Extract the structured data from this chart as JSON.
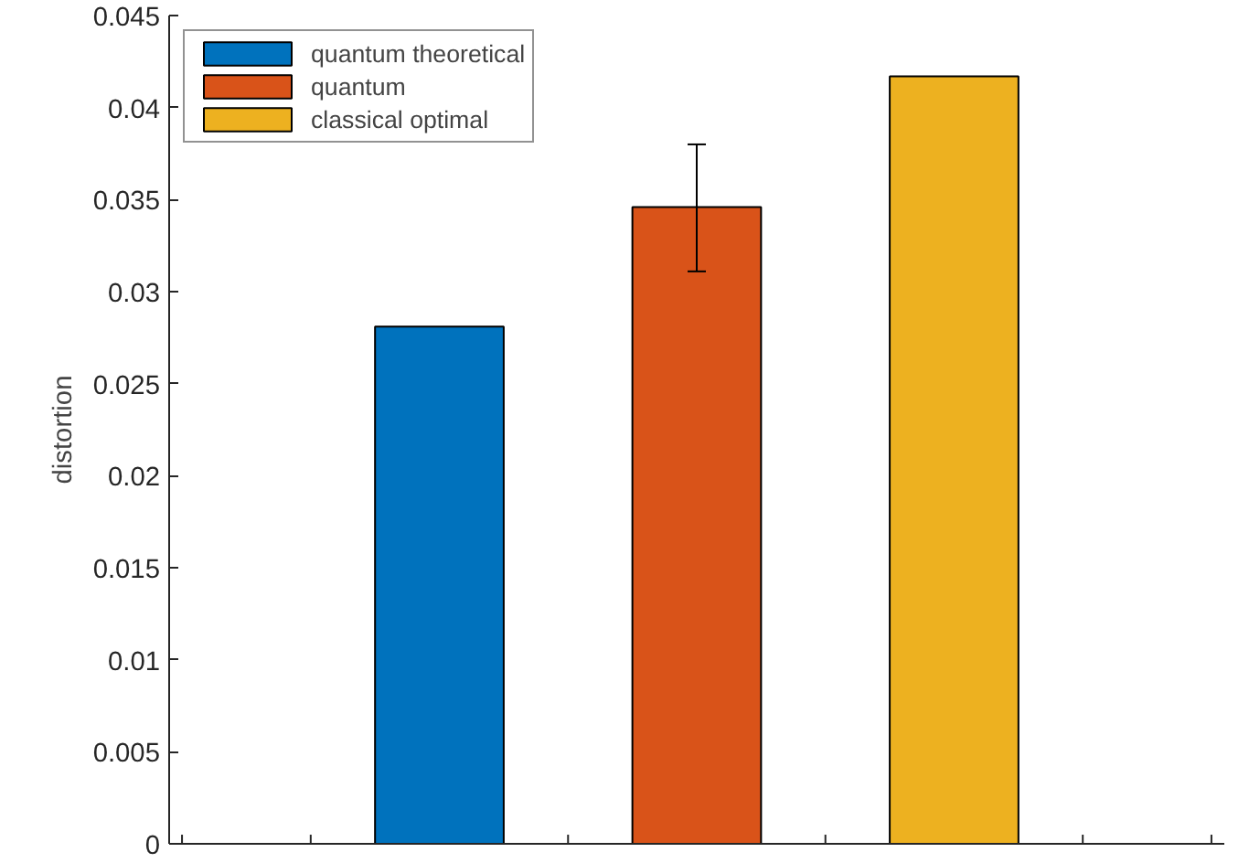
{
  "chart_data": {
    "type": "bar",
    "ylabel": "distortion",
    "categories": [
      null,
      null,
      null
    ],
    "ylim": [
      0,
      0.045
    ],
    "yticks": [
      0,
      0.005,
      0.01,
      0.015,
      0.02,
      0.025,
      0.03,
      0.035,
      0.04,
      0.045
    ],
    "tick_labels": "y",
    "grid": false,
    "legend": "top left",
    "series": [
      {
        "name": "quantum theoretical",
        "color": "#0072bd",
        "values": [
          0.0281,
          null,
          null
        ]
      },
      {
        "name": "quantum",
        "color": "#d95319",
        "values": [
          null,
          0.0346,
          null
        ],
        "errors": [
          null,
          [
            0.0311,
            0.038
          ],
          null
        ]
      },
      {
        "name": "classical optimal",
        "color": "#edb120",
        "values": [
          null,
          null,
          0.0417
        ]
      }
    ]
  }
}
